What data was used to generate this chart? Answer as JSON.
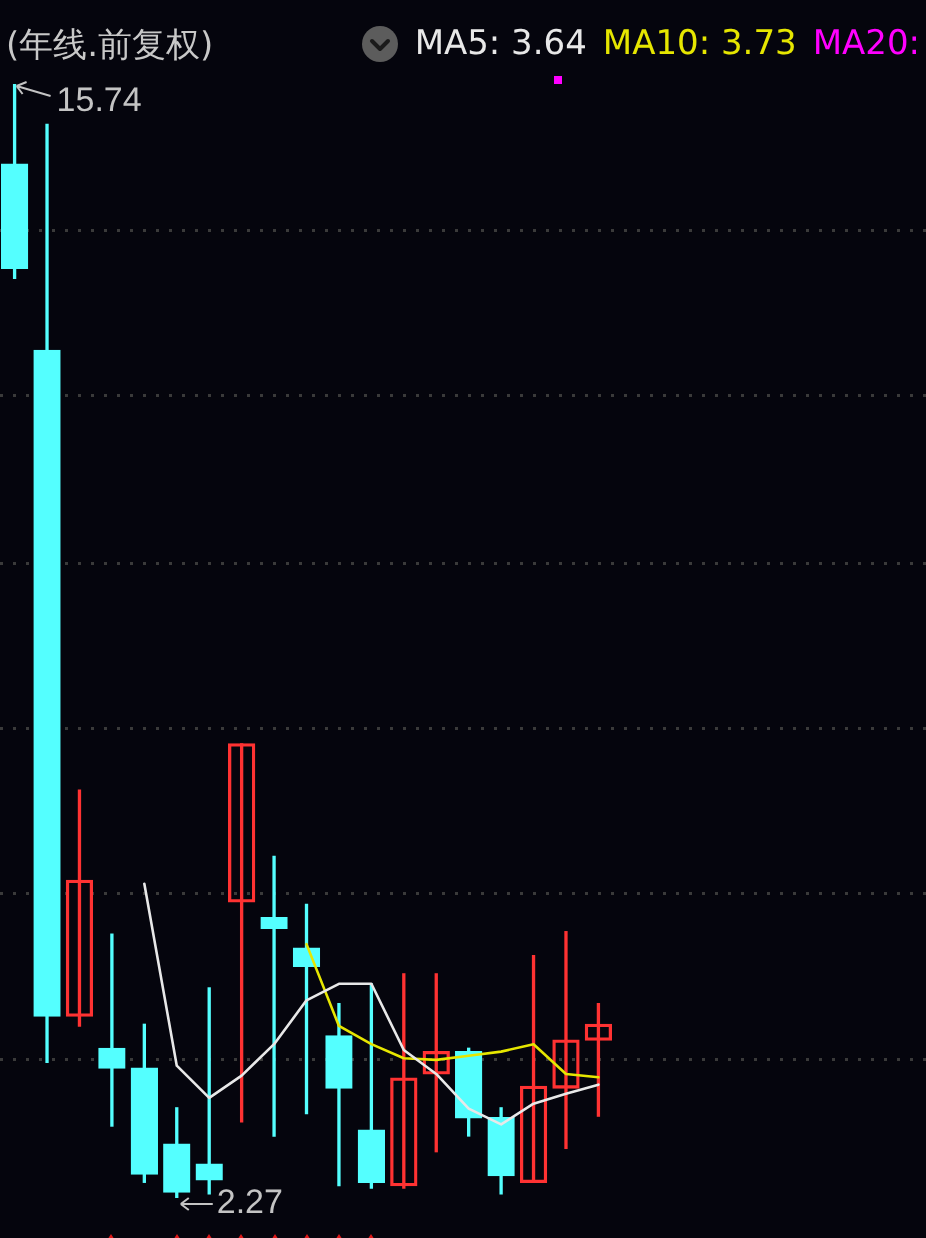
{
  "chart_data": {
    "type": "candlestick",
    "title": "(年线.前复权)",
    "categories": [
      null,
      null,
      null,
      null,
      null,
      null,
      null,
      null,
      null,
      null,
      null,
      null,
      null,
      null,
      null,
      null,
      null,
      null,
      null
    ],
    "ohlc": [
      [
        14.77,
        15.74,
        13.39,
        13.51
      ],
      [
        12.52,
        15.25,
        3.91,
        4.47
      ],
      [
        4.47,
        7.2,
        4.35,
        6.11
      ],
      [
        4.08,
        5.46,
        3.14,
        3.84
      ],
      [
        3.84,
        4.37,
        2.46,
        2.56
      ],
      [
        2.92,
        3.36,
        2.27,
        2.34
      ],
      [
        2.68,
        4.81,
        2.32,
        2.49
      ],
      [
        5.85,
        7.76,
        3.19,
        7.76
      ],
      [
        5.66,
        6.4,
        3.02,
        5.53
      ],
      [
        5.29,
        5.82,
        3.29,
        5.07
      ],
      [
        4.23,
        4.62,
        2.42,
        3.6
      ],
      [
        3.09,
        4.86,
        2.39,
        2.46
      ],
      [
        2.42,
        4.98,
        2.39,
        3.72
      ],
      [
        3.77,
        4.98,
        2.83,
        4.04
      ],
      [
        4.04,
        4.08,
        3.02,
        3.24
      ],
      [
        3.24,
        3.36,
        2.32,
        2.54
      ],
      [
        2.46,
        5.2,
        2.46,
        3.62
      ],
      [
        3.6,
        5.49,
        2.87,
        4.18
      ],
      [
        4.18,
        4.62,
        3.26,
        4.37
      ]
    ],
    "colors": [
      "#54ffff",
      "#54ffff",
      "#ff3232",
      "#54ffff",
      "#54ffff",
      "#54ffff",
      "#54ffff",
      "#ff3232",
      "#54ffff",
      "#54ffff",
      "#54ffff",
      "#54ffff",
      "#ff3232",
      "#ff3232",
      "#54ffff",
      "#54ffff",
      "#ff3232",
      "#ff3232",
      "#ff3232"
    ],
    "series": [
      {
        "type": "line",
        "name": "MA5: 3.64",
        "color": "#e8e8e8",
        "values": [
          null,
          null,
          null,
          null,
          6.07,
          3.87,
          3.48,
          3.75,
          4.13,
          4.66,
          4.86,
          4.86,
          4.06,
          3.77,
          3.35,
          3.16,
          3.41,
          3.53,
          3.64
        ]
      },
      {
        "type": "line",
        "name": "MA10: 3.73",
        "color": "#e6e600",
        "values": [
          null,
          null,
          null,
          null,
          null,
          null,
          null,
          null,
          null,
          5.34,
          4.35,
          4.13,
          3.96,
          3.94,
          3.99,
          4.04,
          4.13,
          3.77,
          3.73
        ]
      },
      {
        "type": "line",
        "name": "MA20:",
        "color": "#ff00ff",
        "values": [
          null,
          null,
          null,
          null,
          null,
          null,
          null,
          null,
          null,
          null,
          null,
          null,
          null,
          null,
          null,
          null,
          null,
          null,
          null
        ]
      }
    ],
    "yticks": [
      {
        "value": 3.94,
        "label": null
      },
      {
        "value": 5.95,
        "label": null
      },
      {
        "value": 7.95,
        "label": null
      },
      {
        "value": 9.94,
        "label": null
      },
      {
        "value": 11.97,
        "label": null
      },
      {
        "value": 13.97,
        "label": null
      }
    ],
    "grid": "y",
    "legend": "top right",
    "tick_labels": false,
    "marker": "none",
    "annotations": [
      "15.74",
      "2.27"
    ]
  }
}
